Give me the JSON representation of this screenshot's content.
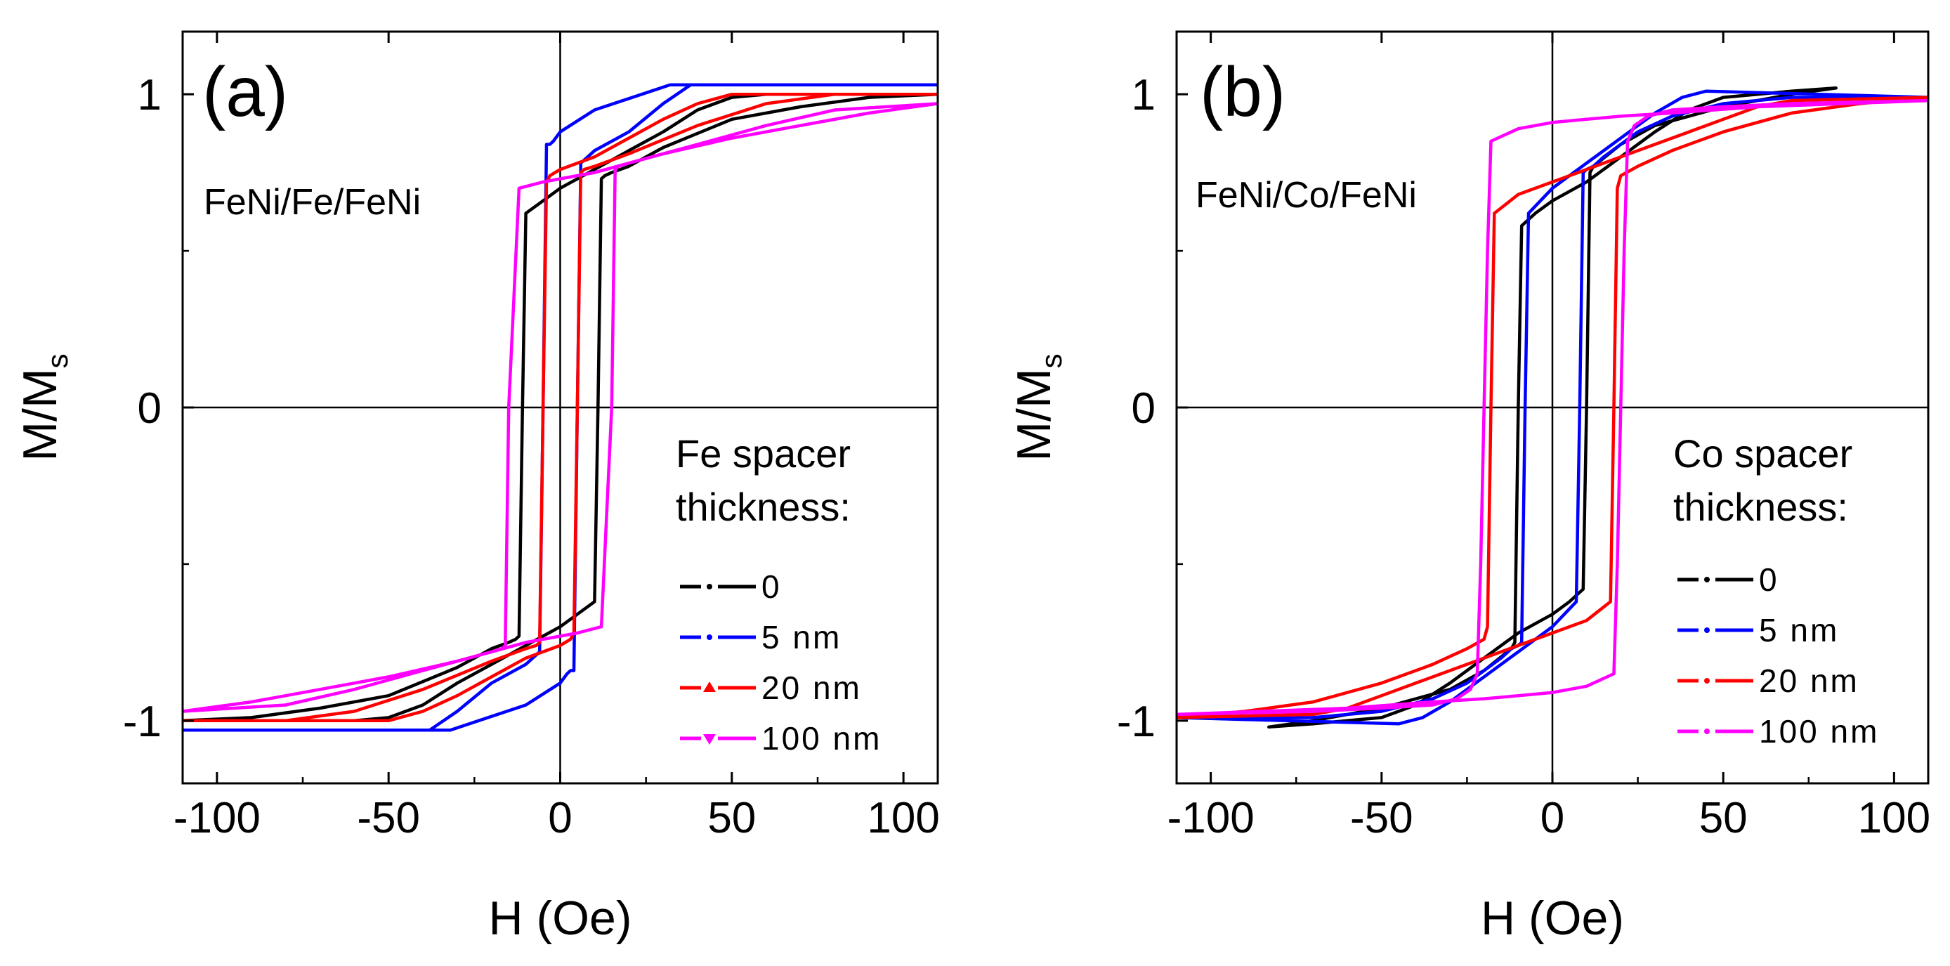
{
  "chart_data": [
    {
      "type": "line",
      "panel_label": "(a)",
      "title": "FeNi/Fe/FeNi",
      "xlabel": "H (Oe)",
      "ylabel_main": "M/M",
      "ylabel_sub": "s",
      "xlim": [
        -110,
        110
      ],
      "ylim": [
        -1.2,
        1.2
      ],
      "xticks": [
        -100,
        -50,
        0,
        50,
        100
      ],
      "xtick_labels": [
        "-100",
        "-50",
        "0",
        "50",
        "100"
      ],
      "yticks": [
        -1,
        0,
        1
      ],
      "ytick_labels": [
        "-1",
        "0",
        "1"
      ],
      "legend_title": [
        "Fe spacer",
        "thickness:"
      ],
      "legend_position": "bottom-right",
      "series": [
        {
          "name": "0",
          "color": "#000000",
          "marker": "none",
          "x": [
            -110,
            -90,
            -70,
            -50,
            -30,
            -20,
            -15,
            -13,
            -12,
            -11,
            -10,
            -5,
            0,
            10,
            20,
            30,
            40,
            50,
            60,
            80,
            110,
            110,
            90,
            70,
            50,
            30,
            20,
            15,
            13,
            12,
            11,
            10,
            5,
            0,
            -10,
            -20,
            -30,
            -40,
            -50,
            -60,
            -80,
            -110
          ],
          "y": [
            -1.0,
            -0.99,
            -0.96,
            -0.92,
            -0.83,
            -0.77,
            -0.75,
            -0.74,
            -0.73,
            0.0,
            0.62,
            0.66,
            0.7,
            0.76,
            0.82,
            0.88,
            0.95,
            0.99,
            1.0,
            1.0,
            1.0,
            1.0,
            0.99,
            0.96,
            0.92,
            0.83,
            0.77,
            0.75,
            0.74,
            0.73,
            0.0,
            -0.62,
            -0.66,
            -0.7,
            -0.76,
            -0.82,
            -0.88,
            -0.95,
            -0.99,
            -1.0,
            -1.0,
            -1.0
          ]
        },
        {
          "name": "5 nm",
          "color": "#0000ff",
          "marker": "none",
          "x": [
            -110,
            -32,
            -10,
            0,
            2,
            3,
            4,
            5,
            6,
            10,
            20,
            30,
            38,
            110,
            110,
            32,
            10,
            0,
            -2,
            -3,
            -4,
            -5,
            -6,
            -10,
            -20,
            -30,
            -38,
            -110
          ],
          "y": [
            -1.03,
            -1.03,
            -0.95,
            -0.88,
            -0.85,
            -0.84,
            -0.84,
            0.0,
            0.78,
            0.82,
            0.88,
            0.97,
            1.03,
            1.03,
            1.03,
            1.03,
            0.95,
            0.88,
            0.85,
            0.84,
            0.84,
            0.0,
            -0.78,
            -0.82,
            -0.88,
            -0.97,
            -1.03,
            -1.03
          ]
        },
        {
          "name": "20 nm",
          "color": "#ff0000",
          "marker": "triangle-up",
          "x": [
            -110,
            -80,
            -60,
            -40,
            -20,
            -10,
            -7,
            -6,
            -5,
            -4,
            -3,
            0,
            10,
            20,
            30,
            40,
            50,
            110,
            110,
            80,
            60,
            40,
            20,
            10,
            7,
            6,
            5,
            4,
            3,
            0,
            -10,
            -20,
            -30,
            -40,
            -50,
            -110
          ],
          "y": [
            -1.0,
            -1.0,
            -0.97,
            -0.9,
            -0.81,
            -0.77,
            -0.76,
            -0.75,
            0.0,
            0.72,
            0.74,
            0.76,
            0.8,
            0.86,
            0.92,
            0.97,
            1.0,
            1.0,
            1.0,
            1.0,
            0.97,
            0.9,
            0.81,
            0.77,
            0.76,
            0.75,
            0.0,
            -0.72,
            -0.74,
            -0.76,
            -0.8,
            -0.86,
            -0.92,
            -0.97,
            -1.0,
            -1.0
          ]
        },
        {
          "name": "100 nm",
          "color": "#ff00ff",
          "marker": "triangle-down",
          "x": [
            -110,
            -90,
            -70,
            -50,
            -30,
            -20,
            -17,
            -16,
            -15,
            -12,
            -5,
            0,
            10,
            20,
            40,
            60,
            80,
            110,
            110,
            90,
            70,
            50,
            30,
            20,
            17,
            16,
            15,
            12,
            5,
            0,
            -10,
            -20,
            -40,
            -60,
            -80,
            -110
          ],
          "y": [
            -0.97,
            -0.94,
            -0.9,
            -0.86,
            -0.81,
            -0.78,
            -0.77,
            -0.76,
            0.0,
            0.7,
            0.72,
            0.73,
            0.75,
            0.78,
            0.84,
            0.9,
            0.95,
            0.97,
            0.97,
            0.94,
            0.9,
            0.86,
            0.81,
            0.78,
            0.77,
            0.76,
            0.0,
            -0.7,
            -0.72,
            -0.73,
            -0.75,
            -0.78,
            -0.84,
            -0.9,
            -0.95,
            -0.97
          ]
        }
      ]
    },
    {
      "type": "line",
      "panel_label": "(b)",
      "title": "FeNi/Co/FeNi",
      "xlabel": "H (Oe)",
      "ylabel_main": "M/M",
      "ylabel_sub": "s",
      "xlim": [
        -110,
        110
      ],
      "ylim": [
        -1.2,
        1.2
      ],
      "xticks": [
        -100,
        -50,
        0,
        50,
        100
      ],
      "xtick_labels": [
        "-100",
        "-50",
        "0",
        "50",
        "100"
      ],
      "yticks": [
        -1,
        0,
        1
      ],
      "ytick_labels": [
        "-1",
        "0",
        "1"
      ],
      "legend_title": [
        "Co spacer",
        "thickness:"
      ],
      "legend_position": "bottom-right",
      "series": [
        {
          "name": "0",
          "color": "#000000",
          "marker": "none",
          "x": [
            -83,
            -70,
            -50,
            -30,
            -20,
            -12,
            -11,
            -10,
            -9,
            -5,
            0,
            10,
            20,
            30,
            40,
            50,
            60,
            70,
            83,
            83,
            70,
            50,
            30,
            20,
            12,
            11,
            10,
            9,
            5,
            0,
            -10,
            -20,
            -30,
            -40,
            -50,
            -60,
            -70,
            -83
          ],
          "y": [
            -1.02,
            -1.0,
            -0.96,
            -0.9,
            -0.84,
            -0.77,
            -0.75,
            0.0,
            0.58,
            0.62,
            0.66,
            0.72,
            0.8,
            0.88,
            0.95,
            0.99,
            1.0,
            1.01,
            1.02,
            1.02,
            1.0,
            0.96,
            0.9,
            0.84,
            0.77,
            0.75,
            0.0,
            -0.58,
            -0.62,
            -0.66,
            -0.72,
            -0.8,
            -0.88,
            -0.95,
            -0.99,
            -1.0,
            -1.01,
            -1.02
          ]
        },
        {
          "name": "5 nm",
          "color": "#0000ff",
          "marker": "none",
          "x": [
            -110,
            -70,
            -50,
            -35,
            -25,
            -15,
            -12,
            -10,
            -9,
            -8,
            -7,
            0,
            10,
            20,
            30,
            38,
            45,
            110,
            110,
            70,
            50,
            35,
            25,
            15,
            12,
            10,
            9,
            8,
            7,
            0,
            -10,
            -20,
            -30,
            -38,
            -45,
            -110
          ],
          "y": [
            -0.99,
            -0.99,
            -0.97,
            -0.93,
            -0.88,
            -0.8,
            -0.77,
            -0.76,
            -0.75,
            0.0,
            0.62,
            0.7,
            0.78,
            0.86,
            0.94,
            0.99,
            1.01,
            0.99,
            0.99,
            0.99,
            0.97,
            0.93,
            0.88,
            0.8,
            0.77,
            0.76,
            0.75,
            0.0,
            -0.62,
            -0.7,
            -0.78,
            -0.86,
            -0.94,
            -0.99,
            -1.01,
            -0.99
          ]
        },
        {
          "name": "20 nm",
          "color": "#ff0000",
          "marker": "none",
          "x": [
            -110,
            -90,
            -70,
            -50,
            -35,
            -25,
            -20,
            -19,
            -18,
            -17,
            -10,
            0,
            10,
            20,
            30,
            40,
            50,
            60,
            70,
            110,
            110,
            90,
            70,
            50,
            35,
            25,
            20,
            19,
            18,
            17,
            10,
            0,
            -10,
            -20,
            -30,
            -40,
            -50,
            -60,
            -70,
            -110
          ],
          "y": [
            -0.99,
            -0.97,
            -0.94,
            -0.88,
            -0.82,
            -0.77,
            -0.74,
            -0.7,
            0.0,
            0.62,
            0.68,
            0.72,
            0.76,
            0.8,
            0.84,
            0.88,
            0.92,
            0.96,
            0.98,
            0.99,
            0.99,
            0.97,
            0.94,
            0.88,
            0.82,
            0.77,
            0.74,
            0.7,
            0.0,
            -0.62,
            -0.68,
            -0.72,
            -0.76,
            -0.8,
            -0.84,
            -0.88,
            -0.92,
            -0.96,
            -0.98,
            -0.99
          ]
        },
        {
          "name": "100 nm",
          "color": "#ff00ff",
          "marker": "none",
          "x": [
            -110,
            -70,
            -50,
            -35,
            -28,
            -24,
            -22,
            -21,
            -20,
            -19,
            -18,
            -10,
            0,
            10,
            20,
            35,
            60,
            110,
            110,
            70,
            50,
            35,
            28,
            24,
            22,
            21,
            20,
            19,
            18,
            10,
            0,
            -10,
            -20,
            -35,
            -60,
            -110
          ],
          "y": [
            -0.98,
            -0.97,
            -0.96,
            -0.95,
            -0.93,
            -0.9,
            -0.85,
            -0.5,
            0.0,
            0.5,
            0.85,
            0.89,
            0.91,
            0.92,
            0.93,
            0.94,
            0.96,
            0.98,
            0.98,
            0.97,
            0.96,
            0.95,
            0.93,
            0.9,
            0.85,
            0.5,
            0.0,
            -0.5,
            -0.85,
            -0.89,
            -0.91,
            -0.92,
            -0.93,
            -0.94,
            -0.96,
            -0.98
          ]
        }
      ]
    }
  ]
}
